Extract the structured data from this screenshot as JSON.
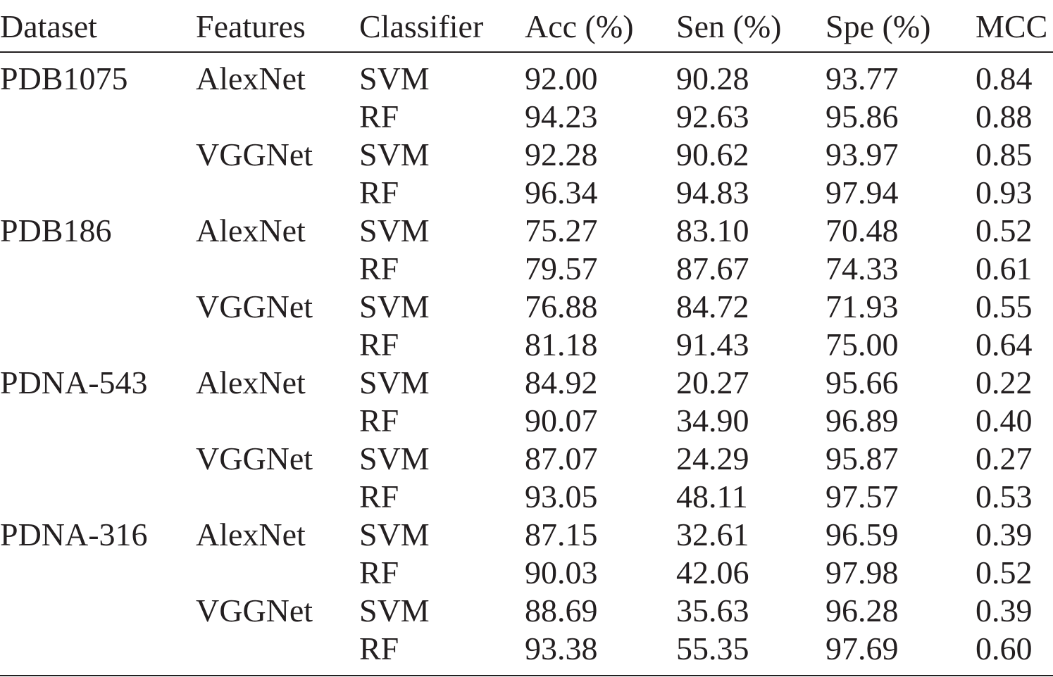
{
  "table": {
    "columns": [
      "Dataset",
      "Features",
      "Classifier",
      "Acc (%)",
      "Sen (%)",
      "Spe (%)",
      "MCC"
    ],
    "datasets": [
      {
        "name": "PDB1075",
        "features": [
          {
            "name": "AlexNet",
            "classifiers": [
              {
                "name": "SVM",
                "acc": "92.00",
                "sen": "90.28",
                "spe": "93.77",
                "mcc": "0.84"
              },
              {
                "name": "RF",
                "acc": "94.23",
                "sen": "92.63",
                "spe": "95.86",
                "mcc": "0.88"
              }
            ]
          },
          {
            "name": "VGGNet",
            "classifiers": [
              {
                "name": "SVM",
                "acc": "92.28",
                "sen": "90.62",
                "spe": "93.97",
                "mcc": "0.85"
              },
              {
                "name": "RF",
                "acc": "96.34",
                "sen": "94.83",
                "spe": "97.94",
                "mcc": "0.93"
              }
            ]
          }
        ]
      },
      {
        "name": "PDB186",
        "features": [
          {
            "name": "AlexNet",
            "classifiers": [
              {
                "name": "SVM",
                "acc": "75.27",
                "sen": "83.10",
                "spe": "70.48",
                "mcc": "0.52"
              },
              {
                "name": "RF",
                "acc": "79.57",
                "sen": "87.67",
                "spe": "74.33",
                "mcc": "0.61"
              }
            ]
          },
          {
            "name": "VGGNet",
            "classifiers": [
              {
                "name": "SVM",
                "acc": "76.88",
                "sen": "84.72",
                "spe": "71.93",
                "mcc": "0.55"
              },
              {
                "name": "RF",
                "acc": "81.18",
                "sen": "91.43",
                "spe": "75.00",
                "mcc": "0.64"
              }
            ]
          }
        ]
      },
      {
        "name": "PDNA-543",
        "features": [
          {
            "name": "AlexNet",
            "classifiers": [
              {
                "name": "SVM",
                "acc": "84.92",
                "sen": "20.27",
                "spe": "95.66",
                "mcc": "0.22"
              },
              {
                "name": "RF",
                "acc": "90.07",
                "sen": "34.90",
                "spe": "96.89",
                "mcc": "0.40"
              }
            ]
          },
          {
            "name": "VGGNet",
            "classifiers": [
              {
                "name": "SVM",
                "acc": "87.07",
                "sen": "24.29",
                "spe": "95.87",
                "mcc": "0.27"
              },
              {
                "name": "RF",
                "acc": "93.05",
                "sen": "48.11",
                "spe": "97.57",
                "mcc": "0.53"
              }
            ]
          }
        ]
      },
      {
        "name": "PDNA-316",
        "features": [
          {
            "name": "AlexNet",
            "classifiers": [
              {
                "name": "SVM",
                "acc": "87.15",
                "sen": "32.61",
                "spe": "96.59",
                "mcc": "0.39"
              },
              {
                "name": "RF",
                "acc": "90.03",
                "sen": "42.06",
                "spe": "97.98",
                "mcc": "0.52"
              }
            ]
          },
          {
            "name": "VGGNet",
            "classifiers": [
              {
                "name": "SVM",
                "acc": "88.69",
                "sen": "35.63",
                "spe": "96.28",
                "mcc": "0.39"
              },
              {
                "name": "RF",
                "acc": "93.38",
                "sen": "55.35",
                "spe": "97.69",
                "mcc": "0.60"
              }
            ]
          }
        ]
      }
    ]
  }
}
